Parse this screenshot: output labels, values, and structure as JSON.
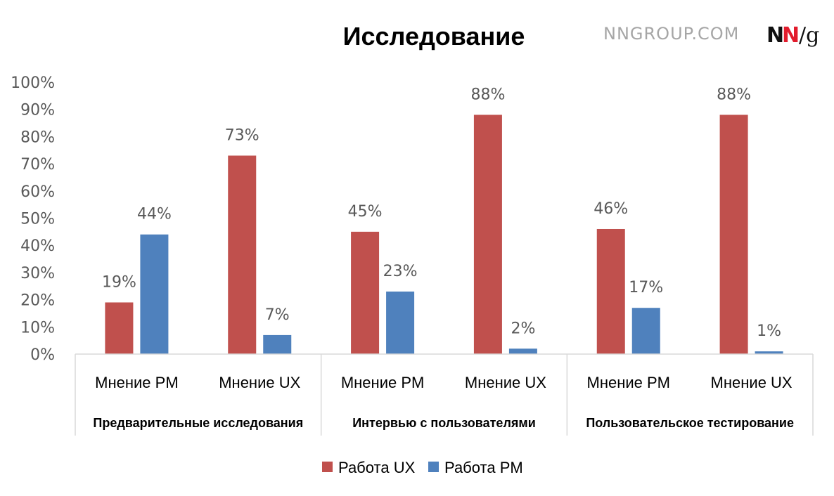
{
  "header": {
    "site": "NNGROUP.COM",
    "logo_n1": "N",
    "logo_n2": "N",
    "logo_slash_g": "/g"
  },
  "chart_data": {
    "type": "bar",
    "title": "Исследование",
    "ylim": [
      0,
      100
    ],
    "yticks": [
      "0%",
      "10%",
      "20%",
      "30%",
      "40%",
      "50%",
      "60%",
      "70%",
      "80%",
      "90%",
      "100%"
    ],
    "groups": [
      "Предварительные исследования",
      "Интервью с пользователями",
      "Пользовательское тестирование"
    ],
    "categories": [
      "Мнение PM",
      "Мнение UX",
      "Мнение PM",
      "Мнение UX",
      "Мнение PM",
      "Мнение UX"
    ],
    "series": [
      {
        "name": "Работа UX",
        "color": "#c0504d",
        "values": [
          19,
          73,
          45,
          88,
          46,
          88
        ],
        "labels": [
          "19%",
          "73%",
          "45%",
          "88%",
          "46%",
          "88%"
        ]
      },
      {
        "name": "Работа PM",
        "color": "#4f81bd",
        "values": [
          44,
          7,
          23,
          2,
          17,
          1
        ],
        "labels": [
          "44%",
          "7%",
          "23%",
          "2%",
          "17%",
          "1%"
        ]
      }
    ],
    "legend_position": "bottom",
    "grid": false
  }
}
